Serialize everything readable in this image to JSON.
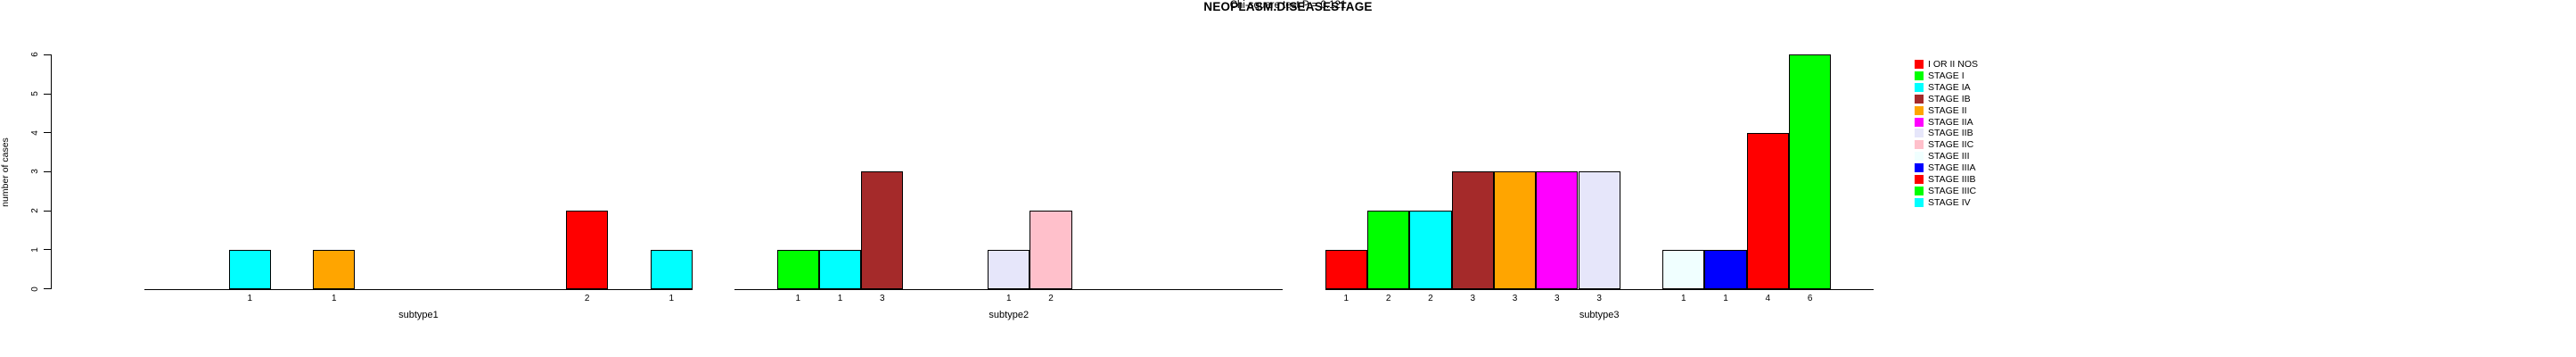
{
  "chart_data": {
    "type": "bar",
    "title": "NEOPLASM.DISEASESTAGE",
    "ylabel": "number of cases",
    "ylim": [
      0,
      6
    ],
    "yticks": [
      0,
      1,
      2,
      3,
      4,
      5,
      6
    ],
    "grid": false,
    "legend_position": "right",
    "annotation": "Chi-square test P = 0.121",
    "stages": [
      {
        "label": "I OR II NOS",
        "color": "#FF0000"
      },
      {
        "label": "STAGE I",
        "color": "#00FF00"
      },
      {
        "label": "STAGE IA",
        "color": "#00FFFF"
      },
      {
        "label": "STAGE IB",
        "color": "#A52A2A"
      },
      {
        "label": "STAGE II",
        "color": "#FFA500"
      },
      {
        "label": "STAGE IIA",
        "color": "#FF00FF"
      },
      {
        "label": "STAGE IIB",
        "color": "#E6E6FA"
      },
      {
        "label": "STAGE IIC",
        "color": "#FFC0CB"
      },
      {
        "label": "STAGE III",
        "color": "#F0FFFF"
      },
      {
        "label": "STAGE IIIA",
        "color": "#0000FF"
      },
      {
        "label": "STAGE IIIB",
        "color": "#FF0000"
      },
      {
        "label": "STAGE IIIC",
        "color": "#00FF00"
      },
      {
        "label": "STAGE IV",
        "color": "#00FFFF"
      }
    ],
    "groups": [
      {
        "label": "subtype1",
        "values": [
          0,
          0,
          1,
          0,
          1,
          0,
          0,
          0,
          0,
          0,
          2,
          0,
          1
        ]
      },
      {
        "label": "subtype2",
        "values": [
          0,
          1,
          1,
          3,
          0,
          0,
          1,
          2,
          0,
          0,
          0,
          0,
          0
        ]
      },
      {
        "label": "subtype3",
        "values": [
          1,
          2,
          2,
          3,
          3,
          3,
          3,
          0,
          1,
          1,
          4,
          6,
          0
        ]
      }
    ]
  }
}
